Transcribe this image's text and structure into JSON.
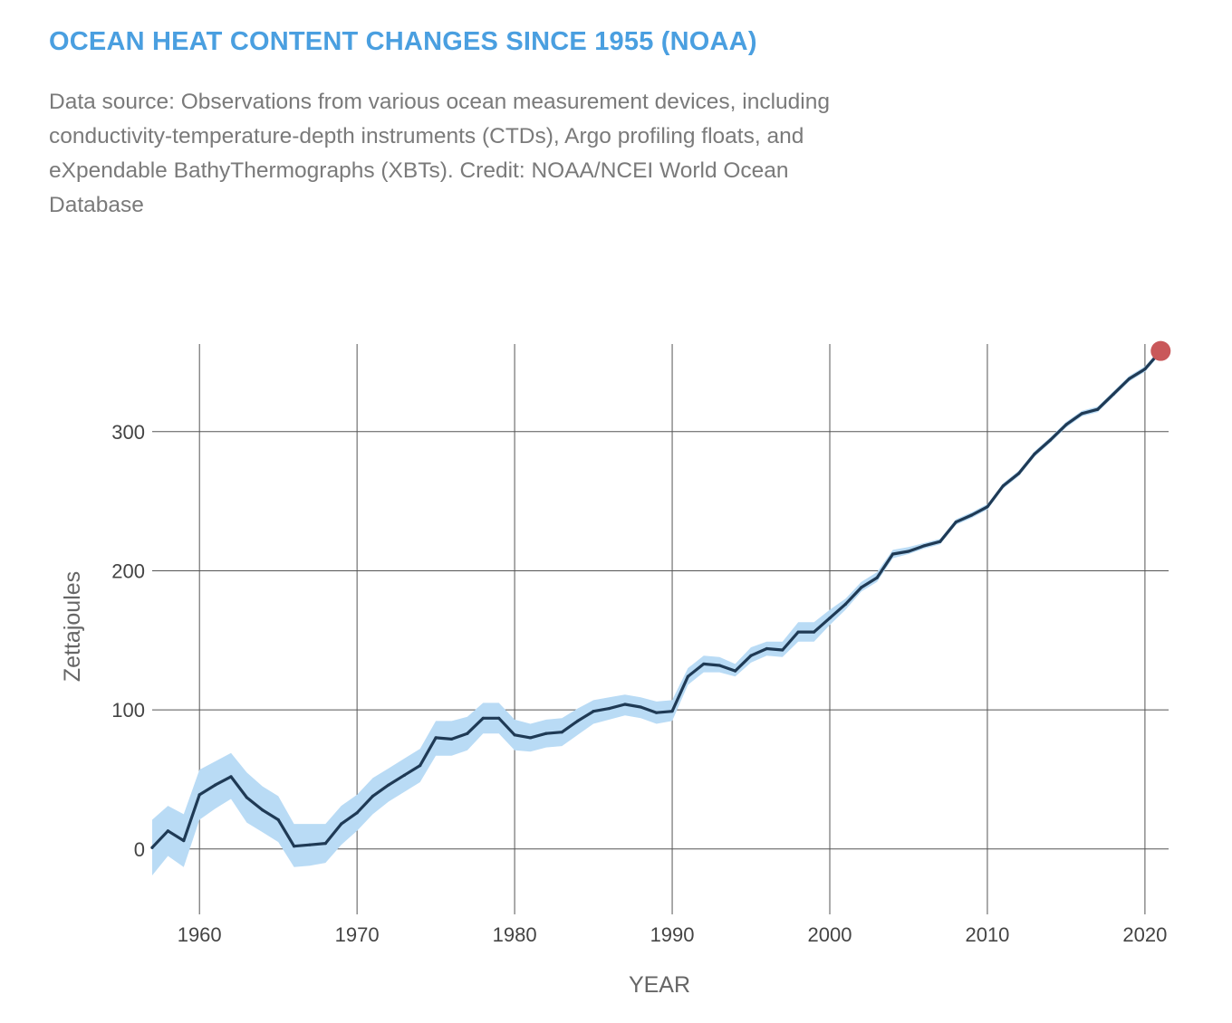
{
  "header": {
    "title": "OCEAN HEAT CONTENT CHANGES SINCE 1955 (NOAA)",
    "subtitle": "Data source: Observations from various ocean measurement devices, including conductivity-temperature-depth instruments (CTDs), Argo profiling floats, and eXpendable BathyThermographs (XBTs). Credit: NOAA/NCEI World Ocean Database"
  },
  "colors": {
    "title": "#4a9fe0",
    "line": "#1f3a55",
    "band": "#b9dbf5",
    "marker": "#c9585a",
    "grid": "#555555",
    "axis_text": "#444444"
  },
  "chart_data": {
    "type": "line",
    "title": "OCEAN HEAT CONTENT CHANGES SINCE 1955 (NOAA)",
    "xlabel": "YEAR",
    "ylabel": "Zettajoules",
    "xlim": [
      1957,
      2021.5
    ],
    "ylim": [
      -47,
      363
    ],
    "x_ticks": [
      1960,
      1970,
      1980,
      1990,
      2000,
      2010,
      2020
    ],
    "y_ticks": [
      0,
      100,
      200,
      300
    ],
    "grid": true,
    "highlight_last_point": true,
    "x": [
      1957,
      1958,
      1959,
      1960,
      1961,
      1962,
      1963,
      1964,
      1965,
      1966,
      1967,
      1968,
      1969,
      1970,
      1971,
      1972,
      1973,
      1974,
      1975,
      1976,
      1977,
      1978,
      1979,
      1980,
      1981,
      1982,
      1983,
      1984,
      1985,
      1986,
      1987,
      1988,
      1989,
      1990,
      1991,
      1992,
      1993,
      1994,
      1995,
      1996,
      1997,
      1998,
      1999,
      2000,
      2001,
      2002,
      2003,
      2004,
      2005,
      2006,
      2007,
      2008,
      2009,
      2010,
      2011,
      2012,
      2013,
      2014,
      2015,
      2016,
      2017,
      2018,
      2019,
      2020,
      2021
    ],
    "series": [
      {
        "name": "Ocean heat content",
        "values": [
          1,
          13,
          6,
          39,
          46,
          52,
          37,
          28,
          21,
          2,
          3,
          4,
          18,
          26,
          38,
          46,
          53,
          60,
          80,
          79,
          83,
          94,
          94,
          82,
          80,
          83,
          84,
          92,
          99,
          101,
          104,
          102,
          98,
          99,
          124,
          133,
          132,
          128,
          139,
          144,
          143,
          156,
          156,
          166,
          176,
          188,
          195,
          212,
          214,
          218,
          221,
          235,
          240,
          246,
          261,
          270,
          284,
          294,
          305,
          313,
          316,
          327,
          338,
          345,
          358
        ],
        "lower": [
          -19,
          -5,
          -13,
          21,
          29,
          36,
          19,
          12,
          5,
          -13,
          -12,
          -10,
          3,
          13,
          25,
          34,
          41,
          48,
          67,
          67,
          71,
          83,
          83,
          71,
          70,
          73,
          74,
          82,
          90,
          93,
          96,
          94,
          90,
          92,
          118,
          127,
          127,
          124,
          134,
          139,
          138,
          149,
          149,
          161,
          172,
          185,
          192,
          209,
          212,
          216,
          219,
          233,
          238,
          244,
          259,
          268,
          282,
          292,
          303,
          311,
          314,
          325,
          336,
          343,
          356
        ],
        "upper": [
          21,
          31,
          25,
          57,
          63,
          69,
          55,
          45,
          38,
          18,
          18,
          18,
          31,
          39,
          51,
          58,
          65,
          72,
          92,
          92,
          95,
          105,
          105,
          93,
          90,
          93,
          94,
          101,
          107,
          109,
          111,
          109,
          106,
          107,
          130,
          139,
          138,
          133,
          145,
          149,
          149,
          163,
          163,
          172,
          180,
          192,
          199,
          215,
          217,
          220,
          223,
          237,
          242,
          248,
          263,
          272,
          286,
          296,
          307,
          315,
          318,
          329,
          340,
          347,
          360
        ]
      }
    ]
  }
}
